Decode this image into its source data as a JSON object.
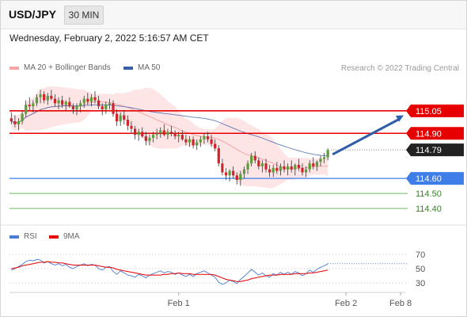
{
  "header": {
    "symbol": "USD/JPY",
    "timeframe": "30 MIN",
    "datetime": "Wednesday, February 2, 2022 5:16:57 AM CET"
  },
  "legend": {
    "ma20_label": "MA 20 + Bollinger Bands",
    "ma50_label": "MA 50",
    "copyright": "Research © 2022 Trading Central",
    "rsi_label": "RSI",
    "ma9_label": "9MA"
  },
  "colors": {
    "bull": "#5a9e3a",
    "bear": "#d2232a",
    "ma20": "#f4a5a5",
    "bollinger_fill": "#fde0e0",
    "ma50": "#3a5fa8",
    "resistance": "#e60000",
    "support": "#3d7ee8",
    "minor_support": "#5da64a",
    "rsi": "#4a7bd6",
    "rsi_ma": "#e60000",
    "arrow": "#2f5da8"
  },
  "chart_data": [
    {
      "type": "candlestick",
      "title": "USD/JPY",
      "ylim": [
        114.3,
        115.26
      ],
      "current_price": 114.79,
      "levels": [
        {
          "label": "115.05",
          "value": 115.05,
          "kind": "resistance"
        },
        {
          "label": "114.90",
          "value": 114.9,
          "kind": "resistance"
        },
        {
          "label": "114.79",
          "value": 114.79,
          "kind": "last"
        },
        {
          "label": "114.60",
          "value": 114.6,
          "kind": "support"
        },
        {
          "label": "114.50",
          "value": 114.5,
          "kind": "minor-support"
        },
        {
          "label": "114.40",
          "value": 114.4,
          "kind": "minor-support"
        }
      ],
      "candles": [
        [
          115.0,
          115.04,
          114.96,
          114.98
        ],
        [
          114.98,
          115.02,
          114.94,
          114.96
        ],
        [
          114.96,
          115.0,
          114.92,
          114.98
        ],
        [
          114.98,
          115.05,
          114.96,
          115.03
        ],
        [
          115.03,
          115.12,
          115.01,
          115.09
        ],
        [
          115.09,
          115.14,
          115.05,
          115.08
        ],
        [
          115.08,
          115.12,
          115.04,
          115.1
        ],
        [
          115.1,
          115.16,
          115.08,
          115.14
        ],
        [
          115.14,
          115.19,
          115.1,
          115.16
        ],
        [
          115.16,
          115.18,
          115.1,
          115.12
        ],
        [
          115.12,
          115.17,
          115.09,
          115.15
        ],
        [
          115.15,
          115.19,
          115.12,
          115.13
        ],
        [
          115.13,
          115.16,
          115.08,
          115.1
        ],
        [
          115.1,
          115.14,
          115.06,
          115.12
        ],
        [
          115.12,
          115.15,
          115.07,
          115.09
        ],
        [
          115.09,
          115.12,
          115.05,
          115.11
        ],
        [
          115.11,
          115.14,
          115.07,
          115.08
        ],
        [
          115.08,
          115.1,
          115.03,
          115.06
        ],
        [
          115.06,
          115.1,
          115.02,
          115.08
        ],
        [
          115.08,
          115.12,
          115.04,
          115.1
        ],
        [
          115.1,
          115.15,
          115.07,
          115.13
        ],
        [
          115.13,
          115.17,
          115.09,
          115.11
        ],
        [
          115.11,
          115.16,
          115.08,
          115.14
        ],
        [
          115.14,
          115.18,
          115.1,
          115.12
        ],
        [
          115.12,
          115.15,
          115.06,
          115.08
        ],
        [
          115.08,
          115.1,
          115.02,
          115.06
        ],
        [
          115.06,
          115.11,
          115.03,
          115.09
        ],
        [
          115.09,
          115.13,
          115.06,
          115.1
        ],
        [
          115.1,
          115.12,
          115.01,
          115.03
        ],
        [
          115.03,
          115.06,
          114.95,
          114.98
        ],
        [
          114.98,
          115.04,
          114.95,
          115.02
        ],
        [
          115.02,
          115.05,
          114.96,
          114.99
        ],
        [
          114.99,
          115.02,
          114.92,
          114.95
        ],
        [
          114.95,
          114.98,
          114.9,
          114.93
        ],
        [
          114.93,
          114.95,
          114.86,
          114.89
        ],
        [
          114.89,
          114.93,
          114.85,
          114.91
        ],
        [
          114.91,
          114.94,
          114.87,
          114.88
        ],
        [
          114.88,
          114.91,
          114.82,
          114.85
        ],
        [
          114.85,
          114.89,
          114.82,
          114.87
        ],
        [
          114.87,
          114.91,
          114.84,
          114.89
        ],
        [
          114.89,
          114.93,
          114.86,
          114.9
        ],
        [
          114.9,
          114.94,
          114.87,
          114.92
        ],
        [
          114.92,
          114.96,
          114.88,
          114.89
        ],
        [
          114.89,
          114.93,
          114.86,
          114.91
        ],
        [
          114.91,
          114.95,
          114.88,
          114.9
        ],
        [
          114.9,
          114.92,
          114.86,
          114.88
        ],
        [
          114.88,
          114.91,
          114.84,
          114.89
        ],
        [
          114.89,
          114.92,
          114.85,
          114.86
        ],
        [
          114.86,
          114.89,
          114.82,
          114.84
        ],
        [
          114.84,
          114.88,
          114.81,
          114.86
        ],
        [
          114.86,
          114.88,
          114.8,
          114.82
        ],
        [
          114.82,
          114.86,
          114.79,
          114.84
        ],
        [
          114.84,
          114.88,
          114.81,
          114.86
        ],
        [
          114.86,
          114.9,
          114.83,
          114.88
        ],
        [
          114.88,
          114.91,
          114.84,
          114.86
        ],
        [
          114.86,
          114.89,
          114.81,
          114.83
        ],
        [
          114.83,
          114.86,
          114.78,
          114.8
        ],
        [
          114.8,
          114.82,
          114.68,
          114.7
        ],
        [
          114.7,
          114.73,
          114.62,
          114.64
        ],
        [
          114.64,
          114.67,
          114.59,
          114.62
        ],
        [
          114.62,
          114.66,
          114.58,
          114.65
        ],
        [
          114.65,
          114.68,
          114.6,
          114.62
        ],
        [
          114.62,
          114.64,
          114.56,
          114.59
        ],
        [
          114.59,
          114.65,
          114.55,
          114.63
        ],
        [
          114.63,
          114.68,
          114.6,
          114.66
        ],
        [
          114.66,
          114.72,
          114.63,
          114.7
        ],
        [
          114.7,
          114.77,
          114.68,
          114.75
        ],
        [
          114.75,
          114.78,
          114.7,
          114.72
        ],
        [
          114.72,
          114.74,
          114.66,
          114.68
        ],
        [
          114.68,
          114.72,
          114.64,
          114.7
        ],
        [
          114.7,
          114.73,
          114.64,
          114.66
        ],
        [
          114.66,
          114.69,
          114.61,
          114.64
        ],
        [
          114.64,
          114.69,
          114.61,
          114.67
        ],
        [
          114.67,
          114.71,
          114.63,
          114.65
        ],
        [
          114.65,
          114.7,
          114.62,
          114.68
        ],
        [
          114.68,
          114.72,
          114.64,
          114.66
        ],
        [
          114.66,
          114.7,
          114.62,
          114.68
        ],
        [
          114.68,
          114.72,
          114.64,
          114.66
        ],
        [
          114.66,
          114.7,
          114.62,
          114.69
        ],
        [
          114.69,
          114.73,
          114.65,
          114.67
        ],
        [
          114.67,
          114.7,
          114.62,
          114.64
        ],
        [
          114.64,
          114.68,
          114.61,
          114.66
        ],
        [
          114.66,
          114.72,
          114.64,
          114.7
        ],
        [
          114.7,
          114.74,
          114.66,
          114.68
        ],
        [
          114.68,
          114.72,
          114.65,
          114.71
        ],
        [
          114.71,
          114.75,
          114.68,
          114.73
        ],
        [
          114.73,
          114.77,
          114.7,
          114.74
        ],
        [
          114.74,
          114.8,
          114.72,
          114.79
        ]
      ],
      "x_ticks": [
        {
          "label": "Feb 1",
          "index": 46
        },
        {
          "label": "Feb 2",
          "index": 92
        },
        {
          "label": "Feb 8",
          "index": 107
        }
      ],
      "x_count": 109
    },
    {
      "type": "line",
      "title": "RSI",
      "ylim": [
        20,
        80
      ],
      "y_ticks": [
        70,
        50,
        30
      ],
      "series": [
        {
          "name": "RSI",
          "values": [
            48,
            50,
            53,
            56,
            60,
            62,
            61,
            63,
            62,
            58,
            60,
            57,
            55,
            57,
            54,
            56,
            52,
            50,
            53,
            55,
            57,
            54,
            56,
            55,
            50,
            48,
            52,
            53,
            46,
            42,
            47,
            44,
            41,
            40,
            38,
            42,
            40,
            37,
            41,
            43,
            45,
            47,
            44,
            46,
            45,
            42,
            44,
            41,
            39,
            42,
            39,
            43,
            45,
            47,
            44,
            41,
            38,
            31,
            28,
            30,
            34,
            32,
            29,
            35,
            39,
            44,
            49,
            45,
            41,
            44,
            40,
            38,
            43,
            41,
            45,
            42,
            45,
            42,
            46,
            44,
            40,
            43,
            48,
            45,
            49,
            52,
            54,
            57
          ]
        },
        {
          "name": "9MA",
          "values": [
            50,
            51,
            52,
            54,
            55,
            56,
            57,
            58,
            59,
            59,
            60,
            59,
            59,
            58,
            58,
            57,
            56,
            55,
            55,
            55,
            55,
            55,
            55,
            55,
            54,
            53,
            52,
            52,
            51,
            49,
            48,
            47,
            46,
            45,
            44,
            43,
            42,
            41,
            41,
            41,
            41,
            41,
            42,
            42,
            43,
            43,
            44,
            43,
            43,
            43,
            42,
            42,
            42,
            42,
            42,
            42,
            41,
            39,
            37,
            35,
            34,
            33,
            32,
            32,
            33,
            34,
            36,
            37,
            38,
            39,
            40,
            41,
            41,
            41,
            42,
            42,
            42,
            42,
            43,
            43,
            43,
            43,
            44,
            44,
            45,
            46,
            47,
            48
          ]
        }
      ]
    }
  ],
  "x_labels": {
    "feb1": "Feb 1",
    "feb2": "Feb 2",
    "feb8": "Feb 8"
  }
}
